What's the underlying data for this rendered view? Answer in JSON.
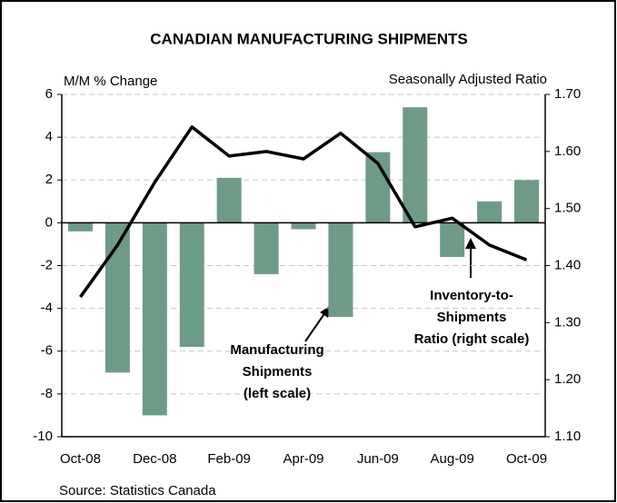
{
  "chart_data": {
    "type": "combo",
    "title": "CANADIAN MANUFACTURING SHIPMENTS",
    "y_label": "M/M % Change",
    "y2_label": "Seasonally Adjusted Ratio",
    "source": "Source: Statistics Canada",
    "categories": [
      "Oct-08",
      null,
      "Dec-08",
      null,
      "Feb-09",
      null,
      "Apr-09",
      null,
      "Jun-09",
      null,
      "Aug-09",
      null,
      "Oct-09"
    ],
    "series": [
      {
        "name": "Manufacturing Shipments",
        "type": "bar",
        "color": "#6e9b88",
        "values": [
          -0.4,
          -7.0,
          -9.0,
          -5.8,
          2.1,
          -2.4,
          -0.3,
          -4.4,
          3.3,
          5.4,
          -1.6,
          1.0,
          2.0
        ]
      },
      {
        "name": "Inventory-to-Shipments Ratio",
        "type": "line",
        "axis": "y2",
        "color": "#000000",
        "values": [
          1.345,
          1.436,
          1.546,
          1.643,
          1.592,
          1.6,
          1.587,
          1.632,
          1.579,
          1.468,
          1.483,
          1.436,
          1.41
        ]
      }
    ],
    "ylim": [
      -10,
      6
    ],
    "yticks": [
      6,
      4,
      2,
      0,
      -2,
      -4,
      -6,
      -8,
      -10
    ],
    "y2lim": [
      1.1,
      1.7
    ],
    "y2ticks": [
      {
        "value": 1.7,
        "label": "1.70"
      },
      {
        "value": 1.6,
        "label": "1.60"
      },
      {
        "value": 1.5,
        "label": "1.50"
      },
      {
        "value": 1.4,
        "label": "1.40"
      },
      {
        "value": 1.3,
        "label": "1.30"
      },
      {
        "value": 1.2,
        "label": "1.20"
      },
      {
        "value": 1.1,
        "label": "1.10"
      }
    ],
    "grid": true,
    "annotations": [
      {
        "lines": [
          "Manufacturing",
          "Shipments",
          "(left scale)"
        ]
      },
      {
        "lines": [
          "Inventory-to-",
          "Shipments",
          "Ratio (right scale)"
        ]
      }
    ]
  }
}
